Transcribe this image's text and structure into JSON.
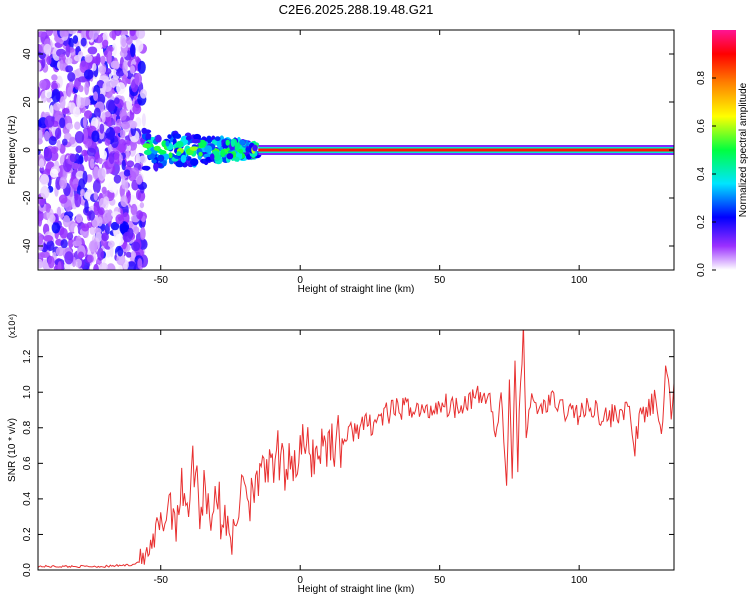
{
  "figure": {
    "title": "C2E6.2025.288.19.48.G21"
  },
  "chart_data": [
    {
      "type": "heatmap",
      "xlabel": "Height of straight line (km)",
      "ylabel": "Frequency (Hz)",
      "xlim": [
        -94,
        134
      ],
      "ylim": [
        -50,
        50
      ],
      "xticks": [
        -50,
        0,
        50,
        100
      ],
      "yticks": [
        -40,
        -20,
        0,
        20,
        40
      ],
      "colorbar": {
        "label": "Normalized spectral amplitude",
        "range": [
          0,
          1
        ],
        "ticks": [
          "0.0",
          "0.2",
          "0.4",
          "0.6",
          "0.8"
        ],
        "colors": [
          "#ffffff",
          "#9b30ff",
          "#0000ff",
          "#00e5ff",
          "#00ff40",
          "#ffff00",
          "#ff8000",
          "#ff0000",
          "#ff1493"
        ]
      },
      "features": [
        {
          "name": "broadband noise",
          "x": [
            -94,
            -56
          ],
          "y": [
            -50,
            50
          ]
        },
        {
          "name": "scattered band",
          "x": [
            -56,
            -15
          ],
          "y": [
            -8,
            8
          ]
        },
        {
          "name": "narrowband carrier",
          "x": [
            -15,
            134
          ],
          "y": 0
        }
      ]
    },
    {
      "type": "line",
      "xlabel": "Height of straight line (km)",
      "ylabel": "SNR (10 * v/v)",
      "y_multiplier": "(x10⁴)",
      "xlim": [
        -94,
        134
      ],
      "ylim": [
        0,
        1.35
      ],
      "xticks": [
        -50,
        0,
        50,
        100
      ],
      "yticks": [
        0.0,
        0.2,
        0.4,
        0.6,
        0.8,
        1.0,
        1.2
      ],
      "color": "#e83030",
      "series": [
        {
          "x": [
            -94,
            -80,
            -70,
            -60,
            -55,
            -50,
            -47,
            -44,
            -42,
            -40,
            -38,
            -36,
            -34,
            -32,
            -30,
            -28,
            -26,
            -24,
            -22,
            -21,
            -20,
            -18,
            -16,
            -14,
            -12,
            -10,
            -8,
            -6,
            -4,
            -2,
            0,
            5,
            10,
            15,
            20,
            25,
            30,
            35,
            40,
            45,
            50,
            55,
            60,
            65,
            68,
            70,
            72,
            74,
            75,
            76,
            77,
            78,
            79,
            80,
            81,
            82,
            85,
            90,
            95,
            100,
            105,
            110,
            115,
            118,
            120,
            122,
            125,
            127,
            129,
            130,
            131,
            132,
            133,
            134
          ],
          "y": [
            0.02,
            0.02,
            0.02,
            0.03,
            0.07,
            0.22,
            0.4,
            0.3,
            0.48,
            0.38,
            0.62,
            0.35,
            0.5,
            0.3,
            0.48,
            0.2,
            0.35,
            0.14,
            0.3,
            0.6,
            0.52,
            0.4,
            0.58,
            0.45,
            0.62,
            0.5,
            0.66,
            0.52,
            0.7,
            0.58,
            0.68,
            0.65,
            0.73,
            0.72,
            0.8,
            0.82,
            0.87,
            0.9,
            0.92,
            0.88,
            0.94,
            0.92,
            0.96,
            0.97,
            0.98,
            0.75,
            0.96,
            0.5,
            1.08,
            0.45,
            1.16,
            0.62,
            1.05,
            1.35,
            0.75,
            0.95,
            0.9,
            0.95,
            0.9,
            0.88,
            0.92,
            0.85,
            0.9,
            0.88,
            0.7,
            0.86,
            0.9,
            0.95,
            0.75,
            0.85,
            1.2,
            1.02,
            0.9,
            1.05
          ]
        }
      ]
    }
  ]
}
